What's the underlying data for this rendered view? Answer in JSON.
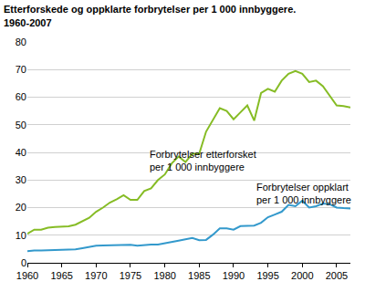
{
  "chart_data": {
    "type": "line",
    "title": "Etterforskede og oppklarte forbrytelser per 1 000 innbyggere.",
    "subtitle": "1960-2007",
    "x": [
      1960,
      1961,
      1962,
      1963,
      1964,
      1965,
      1966,
      1967,
      1968,
      1969,
      1970,
      1971,
      1972,
      1973,
      1974,
      1975,
      1976,
      1977,
      1978,
      1979,
      1980,
      1981,
      1982,
      1983,
      1984,
      1985,
      1986,
      1987,
      1988,
      1989,
      1990,
      1991,
      1992,
      1993,
      1994,
      1995,
      1996,
      1997,
      1998,
      1999,
      2000,
      2001,
      2002,
      2003,
      2004,
      2005,
      2006,
      2007
    ],
    "series": [
      {
        "name": "Forbrytelser etterforsket per 1 000 innbyggere",
        "color": "#86bc25",
        "values": [
          10.5,
          12,
          12,
          12.7,
          13,
          13,
          13.2,
          13.8,
          15,
          16.3,
          18.5,
          20,
          21.8,
          23,
          24.5,
          22.8,
          22.8,
          26,
          27,
          30,
          32,
          36,
          38.5,
          36.5,
          39.5,
          39.5,
          47.5,
          52,
          56,
          55,
          52,
          54.5,
          57,
          51.5,
          61.5,
          63,
          62,
          66,
          68.5,
          69.5,
          68.5,
          65.5,
          66,
          64,
          60.5,
          57,
          56.8,
          56.3
        ]
      },
      {
        "name": "Forbrytelser oppklart per 1 000 innbyggere",
        "color": "#3399cc",
        "values": [
          4.2,
          4.5,
          4.5,
          4.6,
          4.7,
          4.7,
          4.9,
          4.9,
          5.3,
          5.8,
          6.2,
          6.3,
          6.4,
          6.5,
          6.5,
          6.5,
          6.2,
          6.5,
          6.6,
          6.6,
          7.0,
          7.5,
          8.0,
          8.5,
          9.0,
          8.2,
          8.3,
          10.2,
          12.5,
          12.5,
          12.0,
          13.3,
          13.5,
          13.5,
          14.5,
          16.5,
          17.5,
          18.5,
          21,
          20.5,
          22.5,
          20,
          20.5,
          21.5,
          21.2,
          20,
          19.8,
          19.7
        ]
      }
    ],
    "annotations": [
      {
        "text": [
          "Forbrytelser etterforsket",
          "per 1 000 innbyggere"
        ],
        "x": 1977.5,
        "y": 37
      },
      {
        "text": [
          "Forbrytelser oppklart",
          "per 1 000 innbyggere"
        ],
        "x": 1993,
        "y": 25
      }
    ],
    "xlim": [
      1960,
      2007
    ],
    "xticks": [
      1960,
      1965,
      1970,
      1975,
      1980,
      1985,
      1990,
      1995,
      2000,
      2005
    ],
    "ylim": [
      0,
      80
    ],
    "yticks": [
      0,
      10,
      20,
      30,
      40,
      50,
      60,
      70,
      80
    ],
    "grid": true
  }
}
